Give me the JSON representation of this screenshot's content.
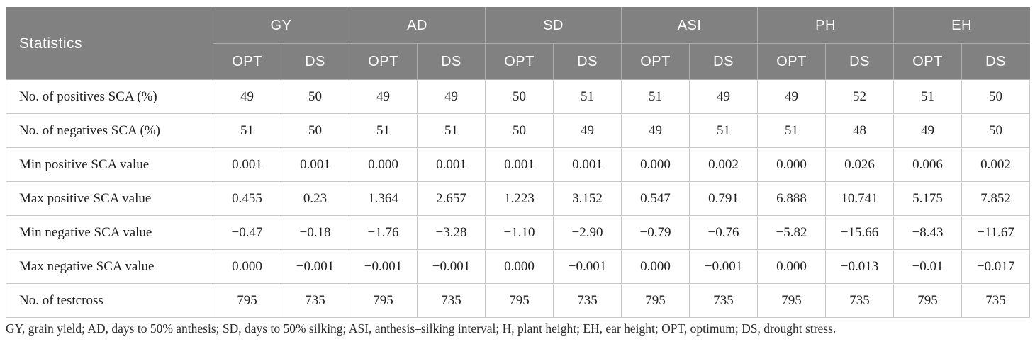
{
  "table": {
    "corner_label": "Statistics",
    "groups": [
      {
        "label": "GY",
        "sub": [
          "OPT",
          "DS"
        ]
      },
      {
        "label": "AD",
        "sub": [
          "OPT",
          "DS"
        ]
      },
      {
        "label": "SD",
        "sub": [
          "OPT",
          "DS"
        ]
      },
      {
        "label": "ASI",
        "sub": [
          "OPT",
          "DS"
        ]
      },
      {
        "label": "PH",
        "sub": [
          "OPT",
          "DS"
        ]
      },
      {
        "label": "EH",
        "sub": [
          "OPT",
          "DS"
        ]
      }
    ],
    "rows": [
      {
        "label": "No. of positives SCA (%)",
        "values": [
          "49",
          "50",
          "49",
          "49",
          "50",
          "51",
          "51",
          "49",
          "49",
          "52",
          "51",
          "50"
        ]
      },
      {
        "label": "No. of negatives SCA (%)",
        "values": [
          "51",
          "50",
          "51",
          "51",
          "50",
          "49",
          "49",
          "51",
          "51",
          "48",
          "49",
          "50"
        ]
      },
      {
        "label": "Min positive SCA value",
        "values": [
          "0.001",
          "0.001",
          "0.000",
          "0.001",
          "0.001",
          "0.001",
          "0.000",
          "0.002",
          "0.000",
          "0.026",
          "0.006",
          "0.002"
        ]
      },
      {
        "label": "Max positive SCA value",
        "values": [
          "0.455",
          "0.23",
          "1.364",
          "2.657",
          "1.223",
          "3.152",
          "0.547",
          "0.791",
          "6.888",
          "10.741",
          "5.175",
          "7.852"
        ]
      },
      {
        "label": "Min negative SCA value",
        "values": [
          "−0.47",
          "−0.18",
          "−1.76",
          "−3.28",
          "−1.10",
          "−2.90",
          "−0.79",
          "−0.76",
          "−5.82",
          "−15.66",
          "−8.43",
          "−11.67"
        ]
      },
      {
        "label": "Max negative SCA value",
        "values": [
          "0.000",
          "−0.001",
          "−0.001",
          "−0.001",
          "0.000",
          "−0.001",
          "0.000",
          "−0.001",
          "0.000",
          "−0.013",
          "−0.01",
          "−0.017"
        ]
      },
      {
        "label": "No. of testcross",
        "values": [
          "795",
          "735",
          "795",
          "735",
          "795",
          "735",
          "795",
          "735",
          "795",
          "735",
          "795",
          "735"
        ]
      }
    ],
    "footnote": "GY, grain yield; AD, days to 50% anthesis; SD, days to 50% silking; ASI, anthesis–silking interval; H, plant height; EH, ear height; OPT, optimum; DS, drought stress.",
    "colors": {
      "header_bg": "#818181",
      "header_text": "#ffffff",
      "body_text": "#212121",
      "grid_line": "#c9c9c9"
    }
  }
}
